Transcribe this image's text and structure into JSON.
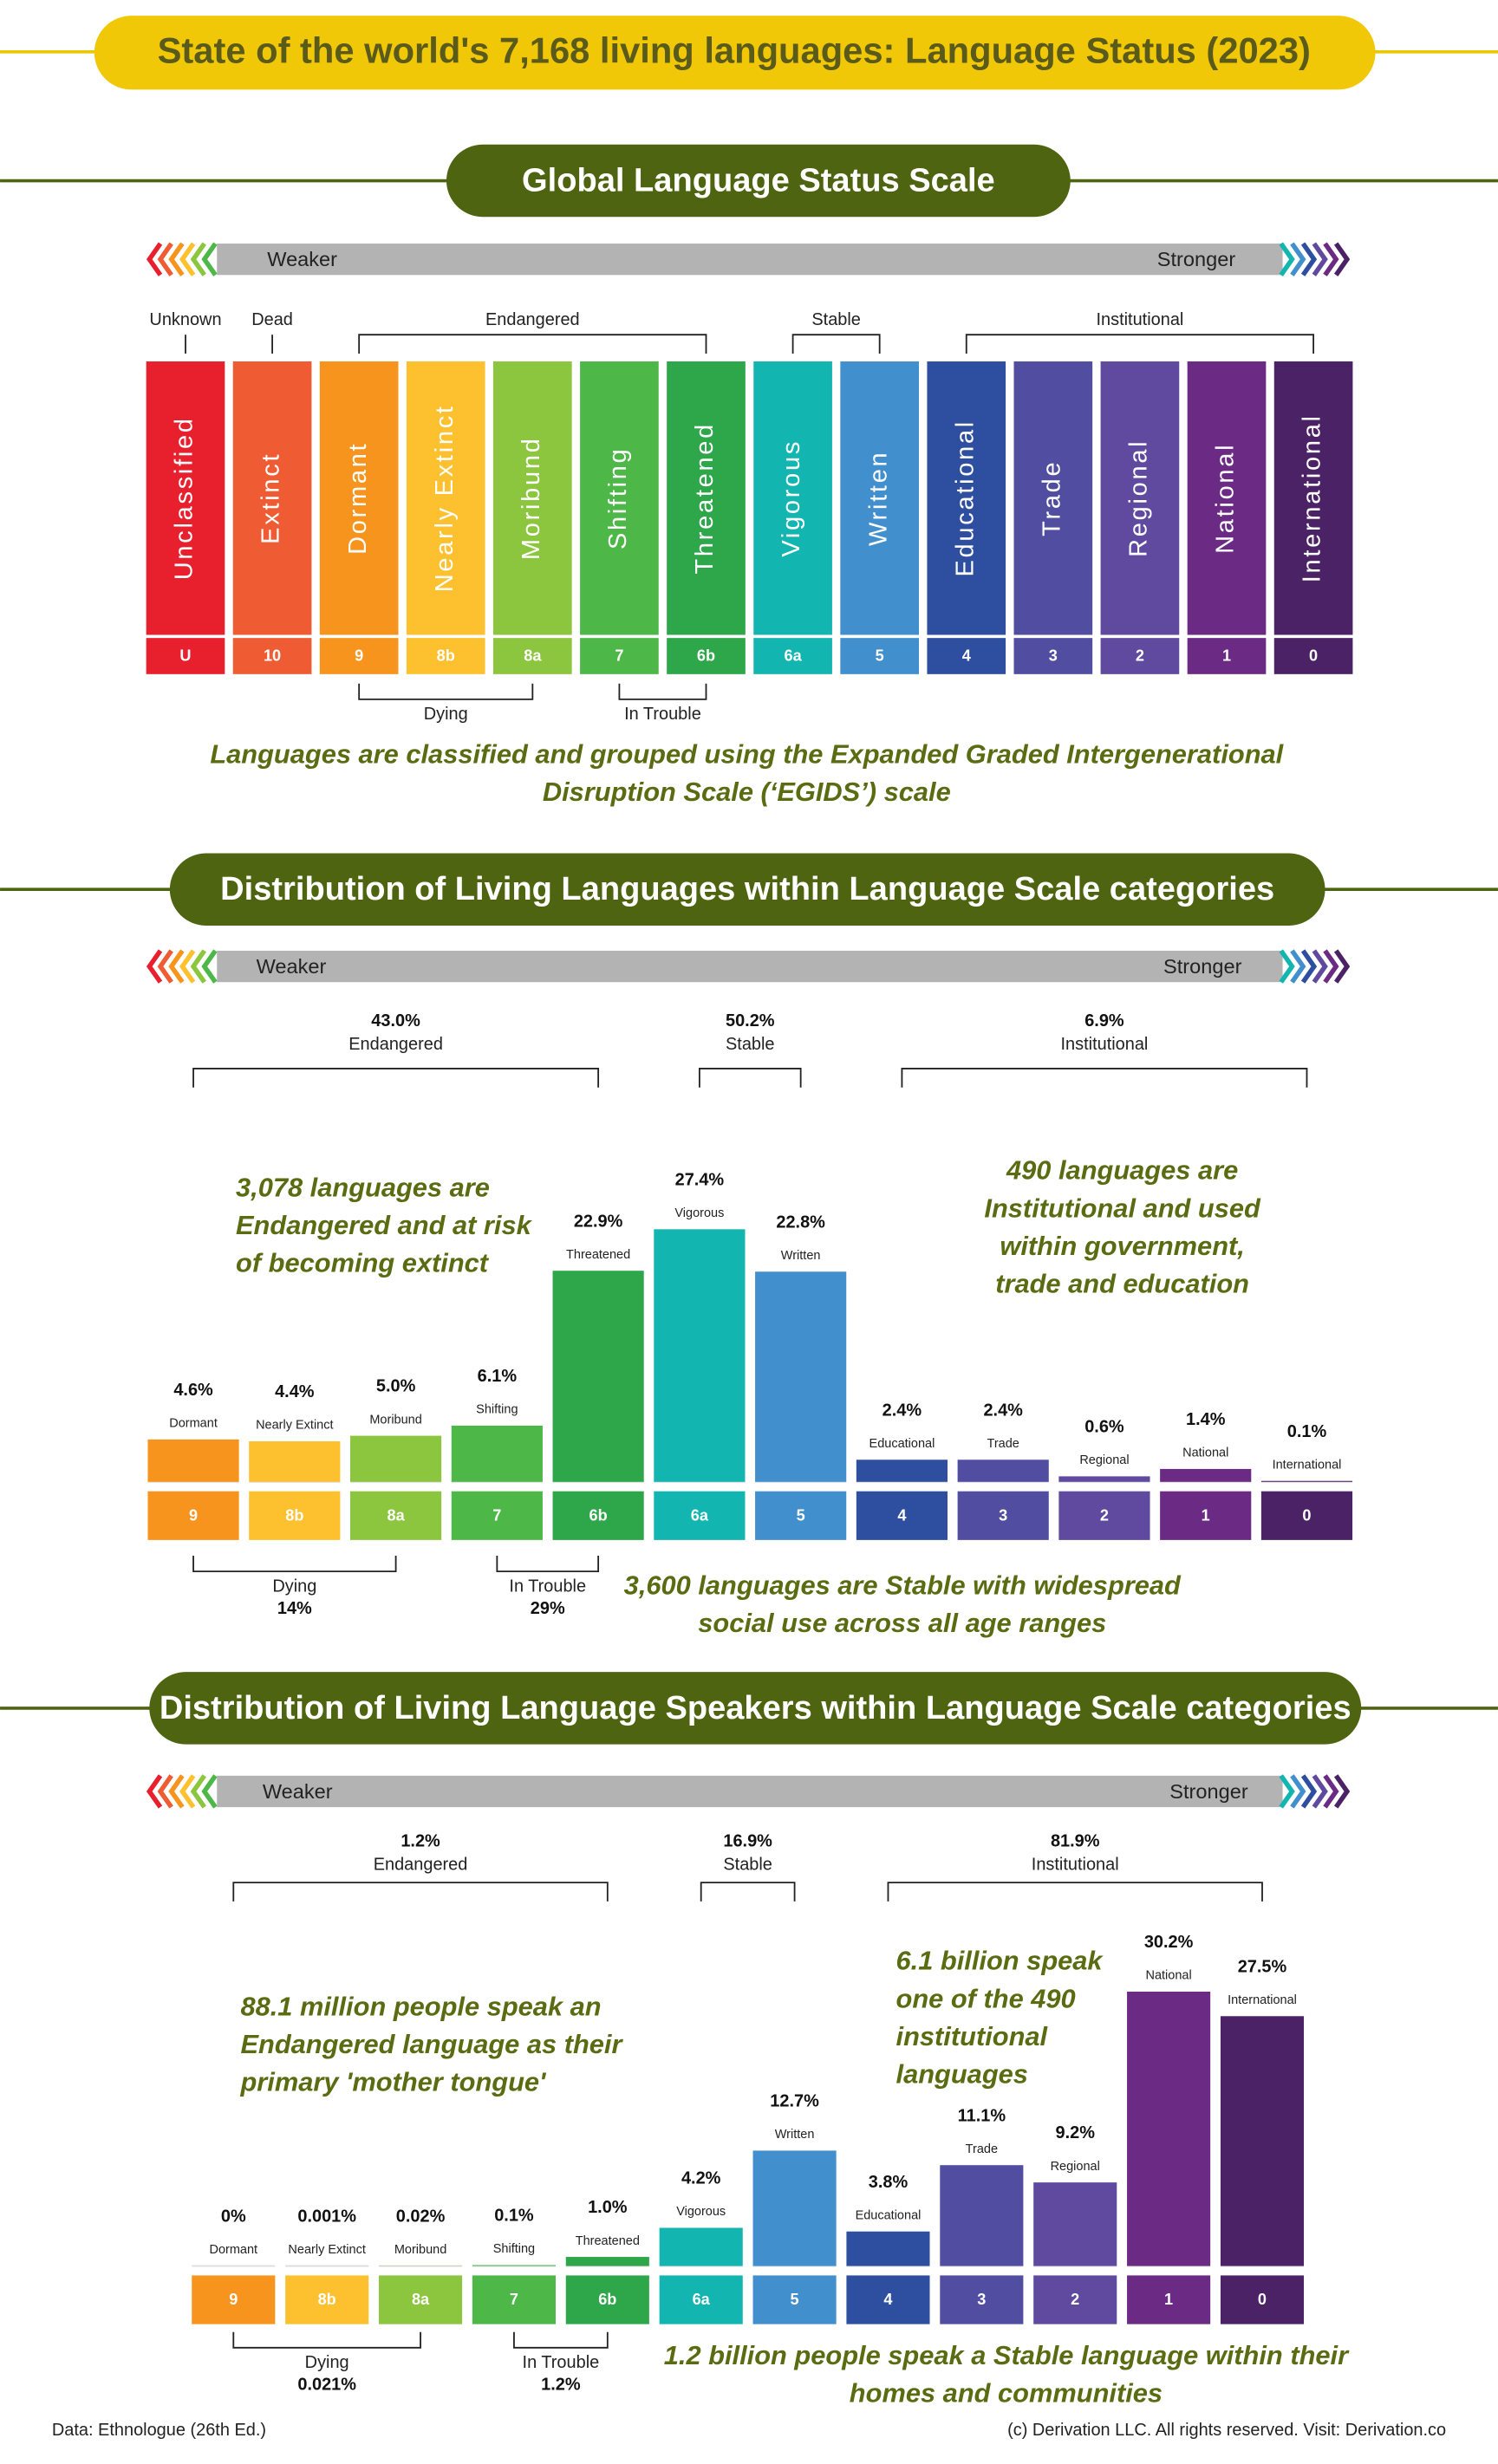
{
  "title": "State of the world's 7,168 living languages: Language Status (2023)",
  "scale": {
    "title": "Global Language Status Scale",
    "weaker": "Weaker",
    "stronger": "Stronger",
    "levels": [
      {
        "name": "Unclassified",
        "code": "U",
        "color": "#e8202e"
      },
      {
        "name": "Extinct",
        "code": "10",
        "color": "#ef5b33"
      },
      {
        "name": "Dormant",
        "code": "9",
        "color": "#f7941d"
      },
      {
        "name": "Nearly Extinct",
        "code": "8b",
        "color": "#fdc02f"
      },
      {
        "name": "Moribund",
        "code": "8a",
        "color": "#8cc63f"
      },
      {
        "name": "Shifting",
        "code": "7",
        "color": "#4db848"
      },
      {
        "name": "Threatened",
        "code": "6b",
        "color": "#2ea64a"
      },
      {
        "name": "Vigorous",
        "code": "6a",
        "color": "#13b5b1"
      },
      {
        "name": "Written",
        "code": "5",
        "color": "#428fcd"
      },
      {
        "name": "Educational",
        "code": "4",
        "color": "#2e4fa0"
      },
      {
        "name": "Trade",
        "code": "3",
        "color": "#514ea1"
      },
      {
        "name": "Regional",
        "code": "2",
        "color": "#5f4a9f"
      },
      {
        "name": "National",
        "code": "1",
        "color": "#6b2a83"
      },
      {
        "name": "International",
        "code": "0",
        "color": "#4b2265"
      }
    ],
    "groups_above": [
      "Unknown",
      "Dead",
      "Endangered",
      "Stable",
      "Institutional"
    ],
    "groups_below": [
      "Dying",
      "In Trouble"
    ],
    "caption": [
      "Languages are classified and grouped using the Expanded Graded Intergenerational",
      "Disruption Scale (‘EGIDS’) scale"
    ]
  },
  "chart_data": [
    {
      "type": "bar",
      "title": "Distribution of Living Languages within Language Scale categories",
      "weaker": "Weaker",
      "stronger": "Stronger",
      "categories": [
        "Dormant",
        "Nearly Extinct",
        "Moribund",
        "Shifting",
        "Threatened",
        "Vigorous",
        "Written",
        "Educational",
        "Trade",
        "Regional",
        "National",
        "International"
      ],
      "codes": [
        "9",
        "8b",
        "8a",
        "7",
        "6b",
        "6a",
        "5",
        "4",
        "3",
        "2",
        "1",
        "0"
      ],
      "values": [
        4.6,
        4.4,
        5.0,
        6.1,
        22.9,
        27.4,
        22.8,
        2.4,
        2.4,
        0.6,
        1.4,
        0.1
      ],
      "value_labels": [
        "4.6%",
        "4.4%",
        "5.0%",
        "6.1%",
        "22.9%",
        "27.4%",
        "22.8%",
        "2.4%",
        "2.4%",
        "0.6%",
        "1.4%",
        "0.1%"
      ],
      "colors": [
        "#f7941d",
        "#fdc02f",
        "#8cc63f",
        "#4db848",
        "#2ea64a",
        "#13b5b1",
        "#428fcd",
        "#2e4fa0",
        "#514ea1",
        "#5f4a9f",
        "#6b2a83",
        "#4b2265"
      ],
      "groups": [
        {
          "share": "43.0%",
          "name": "Endangered"
        },
        {
          "share": "50.2%",
          "name": "Stable"
        },
        {
          "share": "6.9%",
          "name": "Institutional"
        }
      ],
      "subgroups": [
        {
          "name": "Dying",
          "share": "14%"
        },
        {
          "name": "In Trouble",
          "share": "29%"
        }
      ],
      "annotations": [
        [
          "3,078 languages are",
          "Endangered and at risk",
          "of becoming extinct"
        ],
        [
          "490 languages are",
          "Institutional and used",
          "within government,",
          "trade and education"
        ],
        [
          "3,600 languages are Stable with widespread",
          "social use across all age ranges"
        ]
      ]
    },
    {
      "type": "bar",
      "title": "Distribution of Living Language Speakers within Language Scale categories",
      "weaker": "Weaker",
      "stronger": "Stronger",
      "categories": [
        "Dormant",
        "Nearly Extinct",
        "Moribund",
        "Shifting",
        "Threatened",
        "Vigorous",
        "Written",
        "Educational",
        "Trade",
        "Regional",
        "National",
        "International"
      ],
      "codes": [
        "9",
        "8b",
        "8a",
        "7",
        "6b",
        "6a",
        "5",
        "4",
        "3",
        "2",
        "1",
        "0"
      ],
      "values": [
        0,
        0.001,
        0.02,
        0.1,
        1.0,
        4.2,
        12.7,
        3.8,
        11.1,
        9.2,
        30.2,
        27.5
      ],
      "value_labels": [
        "0%",
        "0.001%",
        "0.02%",
        "0.1%",
        "1.0%",
        "4.2%",
        "12.7%",
        "3.8%",
        "11.1%",
        "9.2%",
        "30.2%",
        "27.5%"
      ],
      "colors": [
        "#f7941d",
        "#fdc02f",
        "#8cc63f",
        "#4db848",
        "#2ea64a",
        "#13b5b1",
        "#428fcd",
        "#2e4fa0",
        "#514ea1",
        "#5f4a9f",
        "#6b2a83",
        "#4b2265"
      ],
      "groups": [
        {
          "share": "1.2%",
          "name": "Endangered"
        },
        {
          "share": "16.9%",
          "name": "Stable"
        },
        {
          "share": "81.9%",
          "name": "Institutional"
        }
      ],
      "subgroups": [
        {
          "name": "Dying",
          "share": "0.021%"
        },
        {
          "name": "In Trouble",
          "share": "1.2%"
        }
      ],
      "annotations": [
        [
          "88.1 million people speak an",
          "Endangered language as their",
          "primary 'mother tongue'"
        ],
        [
          "6.1 billion speak",
          "one of the 490",
          "institutional",
          "languages"
        ],
        [
          "1.2 billion people speak a Stable language within their",
          "homes and communities"
        ]
      ]
    }
  ],
  "footer": {
    "source": "Data: Ethnologue (26th Ed.)",
    "copyright": "(c) Derivation LLC. All rights reserved. Visit: Derivation.co"
  }
}
